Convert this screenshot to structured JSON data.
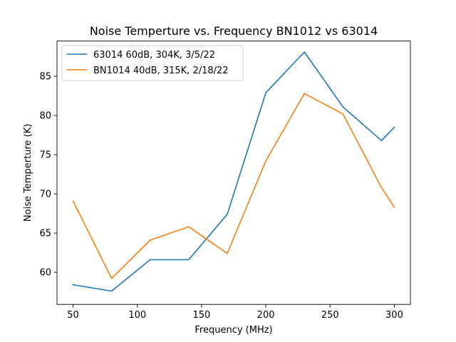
{
  "chart_data": {
    "type": "line",
    "title": "Noise Temperture vs. Frequency BN1012 vs 63014",
    "xlabel": "Frequency (MHz)",
    "ylabel": "Noise Temperture (K)",
    "xlim": [
      37.5,
      312.5
    ],
    "ylim": [
      55.9,
      89.5
    ],
    "xticks": [
      50,
      100,
      150,
      200,
      250,
      300
    ],
    "yticks": [
      60,
      65,
      70,
      75,
      80,
      85
    ],
    "grid": false,
    "legend_position": "top-left",
    "series": [
      {
        "name": "63014 60dB, 304K, 3/5/22",
        "color": "#1f77b4",
        "x": [
          50,
          80,
          110,
          140,
          170,
          200,
          230,
          260,
          290,
          300
        ],
        "y": [
          58.4,
          57.6,
          61.6,
          61.6,
          67.4,
          82.9,
          88.1,
          81.1,
          76.8,
          78.5
        ]
      },
      {
        "name": "BN1014 40dB, 315K, 2/18/22",
        "color": "#ff7f0e",
        "x": [
          50,
          80,
          110,
          140,
          170,
          200,
          230,
          260,
          290,
          300
        ],
        "y": [
          69.1,
          59.2,
          64.1,
          65.8,
          62.4,
          74.2,
          82.8,
          80.2,
          70.8,
          68.3
        ]
      }
    ]
  }
}
